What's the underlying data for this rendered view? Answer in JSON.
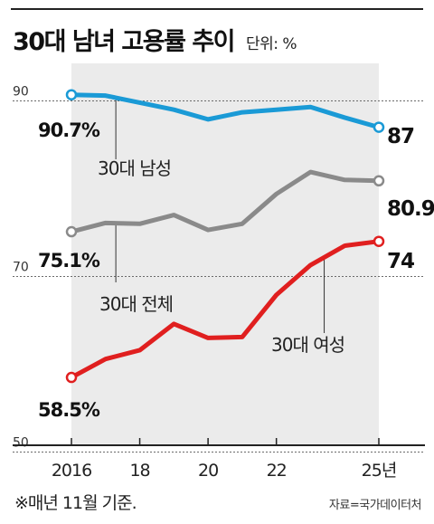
{
  "header": {
    "title": "30대 남녀 고용률 추이",
    "unit": "단위: %"
  },
  "footer": {
    "note": "※매년 11월 기준.",
    "source": "자료=국가데이터처"
  },
  "chart_data": {
    "type": "line",
    "title": "30대 남녀 고용률 추이",
    "unit": "%",
    "x": [
      2016,
      2017,
      2018,
      2019,
      2020,
      2021,
      2022,
      2023,
      2024,
      2025
    ],
    "x_tick_values": [
      2016,
      2018,
      2020,
      2022,
      2025
    ],
    "x_tick_labels": [
      "2016",
      "18",
      "20",
      "22",
      "25년"
    ],
    "y_tick_values": [
      90,
      70,
      50
    ],
    "ylim": [
      50,
      92
    ],
    "grid": "horizontal dotted",
    "series": [
      {
        "name": "30대 남성",
        "color": "#1a9ad6",
        "values": [
          90.7,
          90.6,
          89.8,
          89.0,
          87.9,
          88.7,
          89.0,
          89.3,
          88.1,
          87.0
        ],
        "start_label": "90.7%",
        "end_label": "87"
      },
      {
        "name": "30대 전체",
        "color": "#8a8a8a",
        "values": [
          75.1,
          76.1,
          76.0,
          77.0,
          75.3,
          76.0,
          79.4,
          81.9,
          81.0,
          80.9
        ],
        "start_label": "75.1%",
        "end_label": "80.9"
      },
      {
        "name": "30대 여성",
        "color": "#e01f1f",
        "values": [
          58.5,
          60.6,
          61.6,
          64.6,
          63.0,
          63.1,
          67.9,
          71.3,
          73.5,
          74.0
        ],
        "start_label": "58.5%",
        "end_label": "74"
      }
    ]
  }
}
